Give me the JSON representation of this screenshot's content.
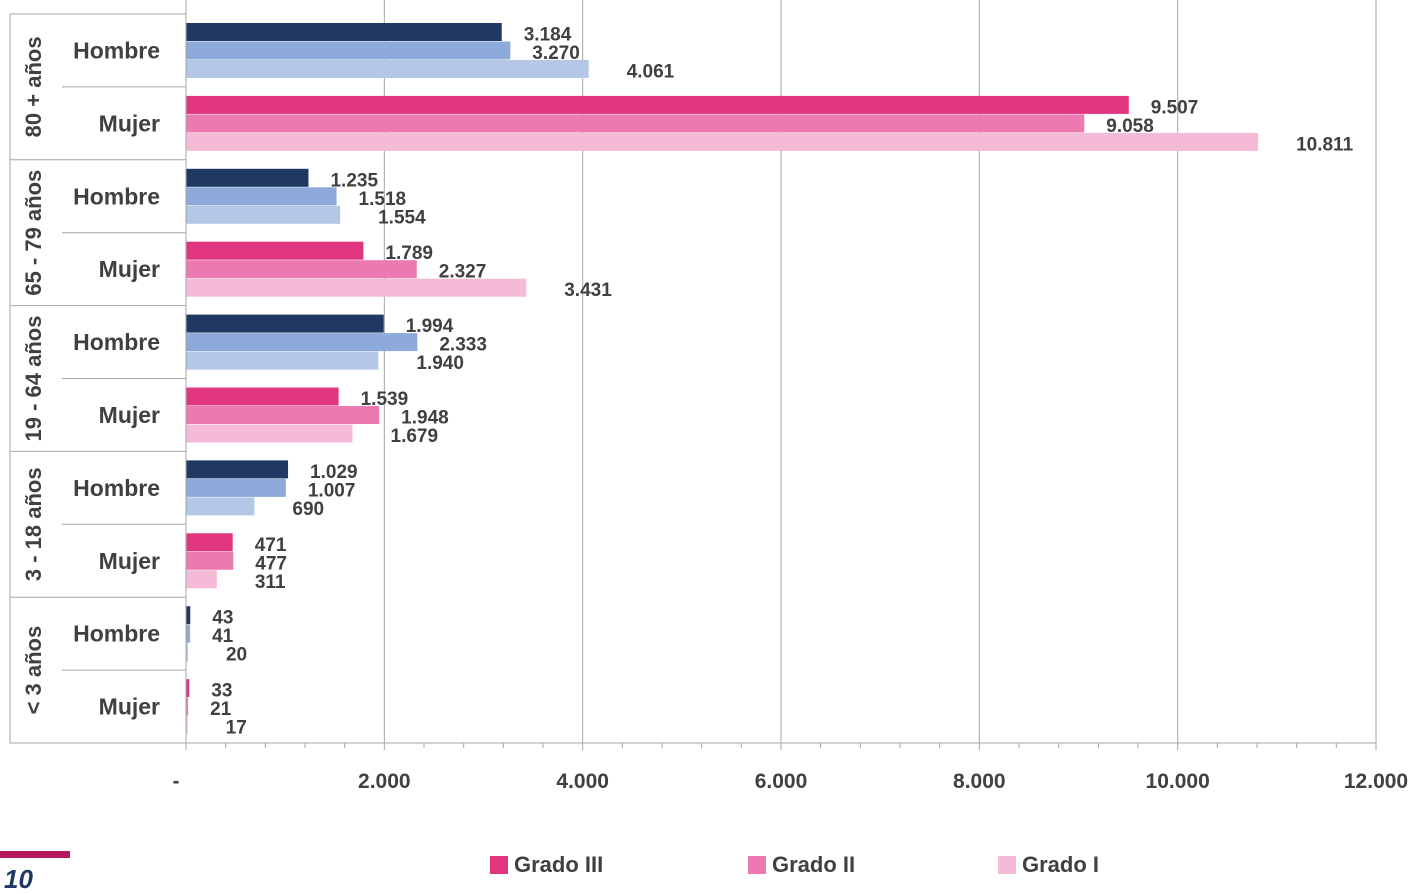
{
  "chart_data": {
    "type": "bar",
    "orientation": "horizontal",
    "groups": [
      {
        "label": "80 + años",
        "rows": [
          {
            "label": "Hombre",
            "values": [
              3184,
              3270,
              4061
            ],
            "labels": [
              "3.184",
              "3.270",
              "4.061"
            ]
          },
          {
            "label": "Mujer",
            "values": [
              9507,
              9058,
              10811
            ],
            "labels": [
              "9.507",
              "9.058",
              "10.811"
            ]
          }
        ]
      },
      {
        "label": "65 - 79 años",
        "rows": [
          {
            "label": "Hombre",
            "values": [
              1235,
              1518,
              1554
            ],
            "labels": [
              "1.235",
              "1.518",
              "1.554"
            ]
          },
          {
            "label": "Mujer",
            "values": [
              1789,
              2327,
              3431
            ],
            "labels": [
              "1.789",
              "2.327",
              "3.431"
            ]
          }
        ]
      },
      {
        "label": "19 - 64 años",
        "rows": [
          {
            "label": "Hombre",
            "values": [
              1994,
              2333,
              1940
            ],
            "labels": [
              "1.994",
              "2.333",
              "1.940"
            ]
          },
          {
            "label": "Mujer",
            "values": [
              1539,
              1948,
              1679
            ],
            "labels": [
              "1.539",
              "1.948",
              "1.679"
            ]
          }
        ]
      },
      {
        "label": "3 - 18 años",
        "rows": [
          {
            "label": "Hombre",
            "values": [
              1029,
              1007,
              690
            ],
            "labels": [
              "1.029",
              "1.007",
              "690"
            ]
          },
          {
            "label": "Mujer",
            "values": [
              471,
              477,
              311
            ],
            "labels": [
              "471",
              "477",
              "311"
            ]
          }
        ]
      },
      {
        "label": "< 3 años",
        "rows": [
          {
            "label": "Hombre",
            "values": [
              43,
              41,
              20
            ],
            "labels": [
              "43",
              "41",
              "20"
            ]
          },
          {
            "label": "Mujer",
            "values": [
              33,
              21,
              17
            ],
            "labels": [
              "33",
              "21",
              "17"
            ]
          }
        ]
      }
    ],
    "series": [
      {
        "name": "Grado III",
        "legend_color": "#e0357f",
        "colors": {
          "Hombre": "#1f3864",
          "Mujer": "#e0357f"
        }
      },
      {
        "name": "Grado II",
        "legend_color": "#ec7ab0",
        "colors": {
          "Hombre": "#8eaadb",
          "Mujer": "#ec7ab0"
        }
      },
      {
        "name": "Grado I",
        "legend_color": "#f4bad6",
        "colors": {
          "Hombre": "#b4c7e7",
          "Mujer": "#f4bad6"
        }
      }
    ],
    "xlim": [
      0,
      12000
    ],
    "xticks": [
      0,
      2000,
      4000,
      6000,
      8000,
      10000,
      12000
    ],
    "xtick_labels": [
      "-",
      "2.000",
      "4.000",
      "6.000",
      "8.000",
      "10.000",
      "12.000"
    ],
    "grid": "vertical",
    "legend_position": "bottom",
    "title": "",
    "xlabel": "",
    "ylabel": ""
  },
  "colors": {
    "label_text": "#404040",
    "grid": "#a6a6a6",
    "page_mark": "#b5185f",
    "page_number": "#1f3864"
  },
  "page": {
    "number": "10"
  }
}
